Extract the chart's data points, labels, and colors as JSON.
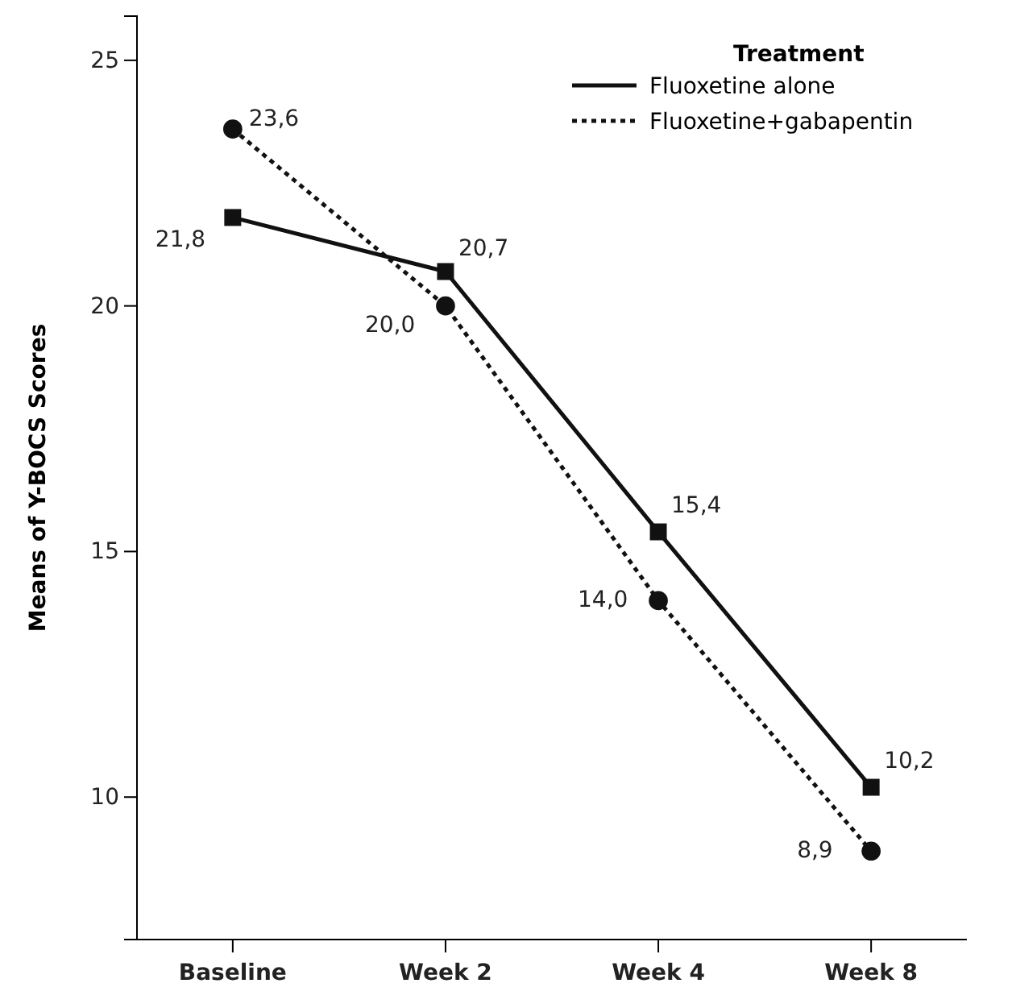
{
  "chart_data": {
    "type": "line",
    "ylabel": "Means of Y-BOCS Scores",
    "legend_title": "Treatment",
    "legend": "top right",
    "categories": [
      "Baseline",
      "Week 2",
      "Week 4",
      "Week 8"
    ],
    "ylim": [
      7.1,
      25.9
    ],
    "yticks": [
      10,
      15,
      20,
      25
    ],
    "grid": false,
    "series": [
      {
        "name": "Fluoxetine alone",
        "color": "#111111",
        "values": [
          21.8,
          20.7,
          15.4,
          10.2
        ],
        "value_labels": [
          "21,8",
          "20,7",
          "15,4",
          "10,2"
        ],
        "marker": "square",
        "line_style": "solid"
      },
      {
        "name": "Fluoxetine+gabapentin",
        "color": "#111111",
        "values": [
          23.6,
          20.0,
          14.0,
          8.9
        ],
        "value_labels": [
          "23,6",
          "20,0",
          "14,0",
          "8,9"
        ],
        "marker": "circle",
        "line_style": "dotted"
      }
    ]
  }
}
